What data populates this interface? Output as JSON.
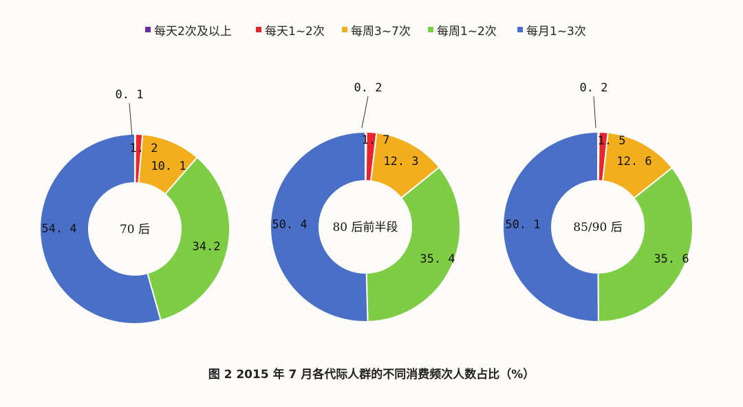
{
  "chart_data": {
    "type": "donut",
    "title": "图 2  2015 年 7 月各代际人群的不同消费频次人数占比（%）",
    "legend_position": "top",
    "series": [
      {
        "name": "每天2次及以上",
        "color": "#6a2da0"
      },
      {
        "name": "每天1~2次",
        "color": "#e8262d"
      },
      {
        "name": "每周3~7次",
        "color": "#f2ae1c"
      },
      {
        "name": "每周1~2次",
        "color": "#7fcc45"
      },
      {
        "name": "每月1~3次",
        "color": "#4a6fc6"
      }
    ],
    "charts": [
      {
        "name": "70 后",
        "values": [
          0.1,
          1.2,
          10.1,
          34.2,
          54.4
        ],
        "labels": [
          "0. 1",
          "1. 2",
          "10. 1",
          "34.2",
          "54. 4"
        ]
      },
      {
        "name": "80 后前半段",
        "values": [
          0.2,
          1.7,
          12.3,
          35.4,
          50.4
        ],
        "labels": [
          "0. 2",
          "1. 7",
          "12. 3",
          "35. 4",
          "50. 4"
        ]
      },
      {
        "name": "85/90 后",
        "values": [
          0.2,
          1.5,
          12.6,
          35.6,
          50.1
        ],
        "labels": [
          "0. 2",
          "1. 5",
          "12. 6",
          "35. 6",
          "50. 1"
        ]
      }
    ]
  }
}
